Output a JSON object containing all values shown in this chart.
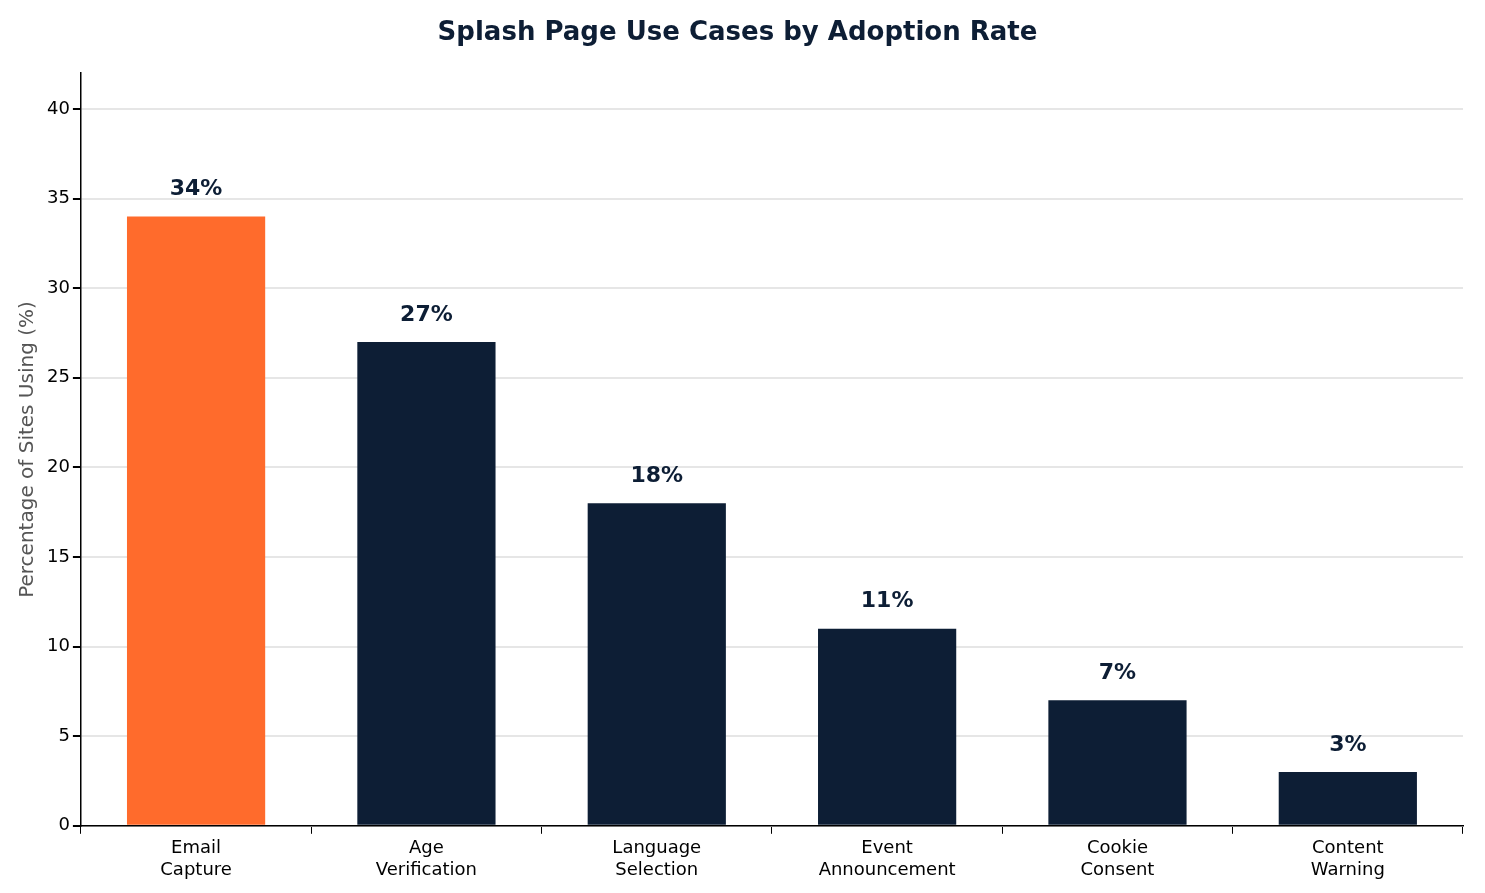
{
  "chart_data": {
    "type": "bar",
    "title": "Splash Page Use Cases by Adoption Rate",
    "ylabel": "Percentage of Sites Using (%)",
    "categories": [
      "Email\nCapture",
      "Age\nVerification",
      "Language\nSelection",
      "Event\nAnnouncement",
      "Cookie\nConsent",
      "Content\nWarning"
    ],
    "values": [
      34,
      27,
      18,
      11,
      7,
      3
    ],
    "colors": [
      "#ff6b2c",
      "#0d1e35",
      "#0d1e35",
      "#0d1e35",
      "#0d1e35",
      "#0d1e35"
    ],
    "value_labels": [
      "34%",
      "27%",
      "18%",
      "11%",
      "7%",
      "3%"
    ],
    "ylim": [
      0,
      42
    ],
    "yticks": [
      0,
      5,
      10,
      15,
      20,
      25,
      30,
      35,
      40
    ],
    "grid": "y"
  }
}
